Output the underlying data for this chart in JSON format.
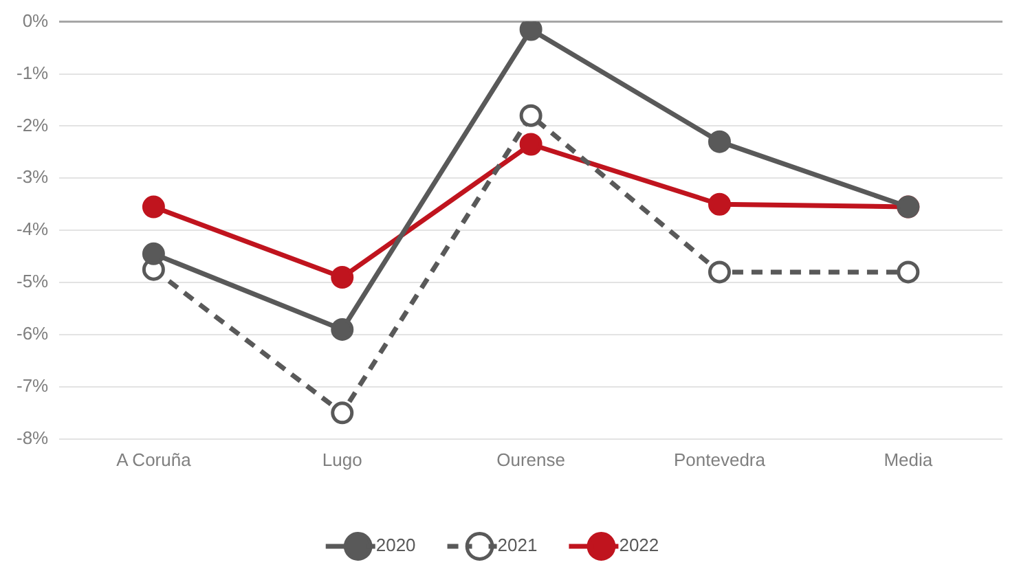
{
  "chart_data": {
    "type": "line",
    "categories": [
      "A Coruña",
      "Lugo",
      "Ourense",
      "Pontevedra",
      "Media"
    ],
    "series": [
      {
        "name": "2020",
        "color": "#595959",
        "values": [
          -4.45,
          -5.9,
          -0.15,
          -2.3,
          -3.55
        ],
        "line_style": "solid"
      },
      {
        "name": "2021",
        "color": "#595959",
        "values": [
          -4.75,
          -7.5,
          -1.8,
          -4.8,
          -4.8
        ],
        "line_style": "dashed"
      },
      {
        "name": "2022",
        "color": "#c0141e",
        "values": [
          -3.55,
          -4.9,
          -2.35,
          -3.5,
          -3.55
        ],
        "line_style": "solid"
      }
    ],
    "ylim": [
      -8,
      0
    ],
    "yticks": [
      {
        "value": 0,
        "label": "0%"
      },
      {
        "value": -1,
        "label": "-1%"
      },
      {
        "value": -2,
        "label": "-2%"
      },
      {
        "value": -3,
        "label": "-3%"
      },
      {
        "value": -4,
        "label": "-4%"
      },
      {
        "value": -5,
        "label": "-5%"
      },
      {
        "value": -6,
        "label": "-6%"
      },
      {
        "value": -7,
        "label": "-7%"
      },
      {
        "value": -8,
        "label": "-8%"
      }
    ],
    "grid": "y",
    "legend": "bottom",
    "marker": "circle"
  }
}
